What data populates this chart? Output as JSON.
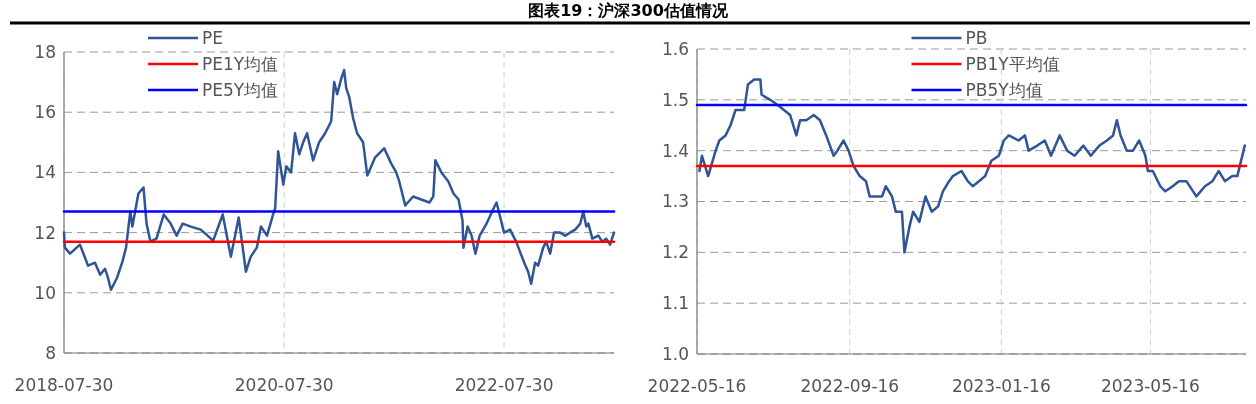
{
  "chart_data": [
    {
      "type": "line",
      "title": "图表19：沪深300估值情况",
      "xlim": [
        "2018-07-30",
        "2023-07-30"
      ],
      "xticks": [
        "2018-07-30",
        "2020-07-30",
        "2022-07-30"
      ],
      "ylim": [
        8,
        18
      ],
      "yticks": [
        8,
        10,
        12,
        14,
        16,
        18
      ],
      "grid": true,
      "legend": "top left",
      "series": [
        {
          "name": "PE",
          "color": "#2f5597",
          "x": [
            "2018-07-30",
            "2018-08-02",
            "2018-08-19",
            "2018-09-21",
            "2018-10-18",
            "2018-11-10",
            "2018-11-27",
            "2018-12-13",
            "2018-12-23",
            "2019-01-02",
            "2019-01-22",
            "2019-02-08",
            "2019-02-21",
            "2019-03-07",
            "2019-03-14",
            "2019-04-03",
            "2019-04-20",
            "2019-04-30",
            "2019-05-13",
            "2019-06-02",
            "2019-06-26",
            "2019-07-19",
            "2019-08-08",
            "2019-08-28",
            "2019-09-24",
            "2019-10-27",
            "2019-11-30",
            "2019-12-06",
            "2020-01-08",
            "2020-02-04",
            "2020-03-01",
            "2020-03-25",
            "2020-04-10",
            "2020-04-30",
            "2020-05-14",
            "2020-06-03",
            "2020-06-23",
            "2020-06-30",
            "2020-07-10",
            "2020-07-27",
            "2020-08-06",
            "2020-08-22",
            "2020-09-04",
            "2020-09-18",
            "2020-10-01",
            "2020-10-14",
            "2020-11-03",
            "2020-11-23",
            "2020-12-13",
            "2021-01-02",
            "2021-01-12",
            "2021-01-22",
            "2021-02-04",
            "2021-02-14",
            "2021-02-21",
            "2021-03-03",
            "2021-03-16",
            "2021-03-29",
            "2021-04-18",
            "2021-05-02",
            "2021-05-28",
            "2021-06-27",
            "2021-07-20",
            "2021-08-06",
            "2021-08-16",
            "2021-09-05",
            "2021-10-01",
            "2021-10-28",
            "2021-11-24",
            "2021-12-07",
            "2021-12-14",
            "2022-01-03",
            "2022-01-26",
            "2022-02-12",
            "2022-03-01",
            "2022-03-14",
            "2022-03-17",
            "2022-03-31",
            "2022-04-13",
            "2022-04-26",
            "2022-05-10",
            "2022-06-02",
            "2022-06-25",
            "2022-07-05",
            "2022-07-15",
            "2022-07-30",
            "2022-08-19",
            "2022-09-08",
            "2022-10-05",
            "2022-10-18",
            "2022-10-28",
            "2022-11-10",
            "2022-11-20",
            "2022-12-07",
            "2022-12-17",
            "2022-12-30",
            "2023-01-12",
            "2023-02-01",
            "2023-02-18",
            "2023-03-06",
            "2023-03-23",
            "2023-04-09",
            "2023-04-19",
            "2023-04-29",
            "2023-05-06",
            "2023-05-19",
            "2023-06-08",
            "2023-06-21",
            "2023-07-04",
            "2023-07-17",
            "2023-07-30"
          ],
          "values": [
            12.0,
            11.5,
            11.3,
            11.6,
            10.9,
            11.0,
            10.6,
            10.8,
            10.5,
            10.1,
            10.5,
            11.0,
            11.5,
            12.7,
            12.2,
            13.3,
            13.5,
            12.3,
            11.7,
            11.8,
            12.6,
            12.3,
            11.9,
            12.3,
            12.2,
            12.1,
            11.8,
            11.7,
            12.6,
            11.2,
            12.5,
            10.7,
            11.2,
            11.5,
            12.2,
            11.9,
            12.6,
            12.8,
            14.7,
            13.6,
            14.2,
            14.0,
            15.3,
            14.6,
            15.0,
            15.3,
            14.4,
            15.0,
            15.3,
            15.7,
            17.0,
            16.6,
            17.1,
            17.4,
            16.8,
            16.5,
            15.8,
            15.3,
            15.0,
            13.9,
            14.5,
            14.8,
            14.3,
            14.0,
            13.7,
            12.9,
            13.2,
            13.1,
            13.0,
            13.2,
            14.4,
            14.0,
            13.7,
            13.3,
            13.1,
            12.4,
            11.5,
            12.2,
            11.9,
            11.3,
            11.9,
            12.3,
            12.8,
            13.0,
            12.6,
            12.0,
            12.1,
            11.7,
            11.0,
            10.7,
            10.3,
            11.0,
            10.9,
            11.5,
            11.7,
            11.3,
            12.0,
            12.0,
            11.9,
            12.0,
            12.1,
            12.3,
            12.7,
            12.2,
            12.3,
            11.8,
            11.9,
            11.7,
            11.8,
            11.6,
            12.0
          ]
        },
        {
          "name": "PE1Y均值",
          "color": "#ff0000",
          "x": [
            "2018-07-30",
            "2023-07-30"
          ],
          "values": [
            11.7,
            11.7
          ]
        },
        {
          "name": "PE5Y均值",
          "color": "#0000ff",
          "x": [
            "2018-07-30",
            "2023-07-30"
          ],
          "values": [
            12.7,
            12.7
          ]
        }
      ]
    },
    {
      "type": "line",
      "xlim": [
        "2022-05-16",
        "2023-08-01"
      ],
      "xticks": [
        "2022-05-16",
        "2022-09-16",
        "2023-01-16",
        "2023-05-16"
      ],
      "ylim": [
        1.0,
        1.6
      ],
      "yticks": [
        {
          "value": 1.0,
          "label": "1.0"
        },
        1.1,
        1.2,
        1.3,
        1.4,
        1.5,
        1.6
      ],
      "grid": true,
      "legend": "top",
      "series": [
        {
          "name": "PB",
          "color": "#2f5597",
          "x": [
            "2022-05-18",
            "2022-05-20",
            "2022-05-25",
            "2022-05-31",
            "2022-06-03",
            "2022-06-08",
            "2022-06-12",
            "2022-06-16",
            "2022-06-20",
            "2022-06-23",
            "2022-06-26",
            "2022-07-01",
            "2022-07-06",
            "2022-07-07",
            "2022-07-14",
            "2022-07-20",
            "2022-07-25",
            "2022-07-30",
            "2022-08-04",
            "2022-08-07",
            "2022-08-12",
            "2022-08-18",
            "2022-08-23",
            "2022-08-28",
            "2022-09-03",
            "2022-09-06",
            "2022-09-11",
            "2022-09-15",
            "2022-09-19",
            "2022-09-24",
            "2022-09-29",
            "2022-10-02",
            "2022-10-07",
            "2022-10-12",
            "2022-10-15",
            "2022-10-20",
            "2022-10-23",
            "2022-10-28",
            "2022-10-30",
            "2022-11-03",
            "2022-11-06",
            "2022-11-11",
            "2022-11-16",
            "2022-11-21",
            "2022-11-26",
            "2022-11-30",
            "2022-12-05",
            "2022-12-08",
            "2022-12-15",
            "2022-12-20",
            "2022-12-24",
            "2022-12-29",
            "2023-01-03",
            "2023-01-08",
            "2023-01-14",
            "2023-01-18",
            "2023-01-22",
            "2023-01-30",
            "2023-02-04",
            "2023-02-07",
            "2023-02-14",
            "2023-02-20",
            "2023-02-25",
            "2023-03-04",
            "2023-03-10",
            "2023-03-16",
            "2023-03-23",
            "2023-03-29",
            "2023-04-05",
            "2023-04-11",
            "2023-04-16",
            "2023-04-19",
            "2023-04-22",
            "2023-04-27",
            "2023-05-02",
            "2023-05-07",
            "2023-05-12",
            "2023-05-14",
            "2023-05-18",
            "2023-05-24",
            "2023-05-28",
            "2023-06-03",
            "2023-06-08",
            "2023-06-14",
            "2023-06-22",
            "2023-06-29",
            "2023-07-05",
            "2023-07-10",
            "2023-07-15",
            "2023-07-21",
            "2023-07-25",
            "2023-07-28",
            "2023-07-31"
          ],
          "values": [
            1.36,
            1.39,
            1.35,
            1.4,
            1.42,
            1.43,
            1.45,
            1.48,
            1.48,
            1.48,
            1.53,
            1.54,
            1.54,
            1.51,
            1.5,
            1.49,
            1.48,
            1.47,
            1.43,
            1.46,
            1.46,
            1.47,
            1.46,
            1.43,
            1.39,
            1.4,
            1.42,
            1.4,
            1.37,
            1.35,
            1.34,
            1.31,
            1.31,
            1.31,
            1.33,
            1.31,
            1.28,
            1.28,
            1.2,
            1.25,
            1.28,
            1.26,
            1.31,
            1.28,
            1.29,
            1.32,
            1.34,
            1.35,
            1.36,
            1.34,
            1.33,
            1.34,
            1.35,
            1.38,
            1.39,
            1.42,
            1.43,
            1.42,
            1.43,
            1.4,
            1.41,
            1.42,
            1.39,
            1.43,
            1.4,
            1.39,
            1.41,
            1.39,
            1.41,
            1.42,
            1.43,
            1.46,
            1.43,
            1.4,
            1.4,
            1.42,
            1.39,
            1.36,
            1.36,
            1.33,
            1.32,
            1.33,
            1.34,
            1.34,
            1.31,
            1.33,
            1.34,
            1.36,
            1.34,
            1.35,
            1.35,
            1.38,
            1.41
          ]
        },
        {
          "name": "PB1Y平均值",
          "color": "#ff0000",
          "x": [
            "2022-05-16",
            "2023-08-01"
          ],
          "values": [
            1.37,
            1.37
          ]
        },
        {
          "name": "PB5Y均值",
          "color": "#0000ff",
          "x": [
            "2022-05-16",
            "2023-08-01"
          ],
          "values": [
            1.49,
            1.49
          ]
        }
      ]
    }
  ]
}
